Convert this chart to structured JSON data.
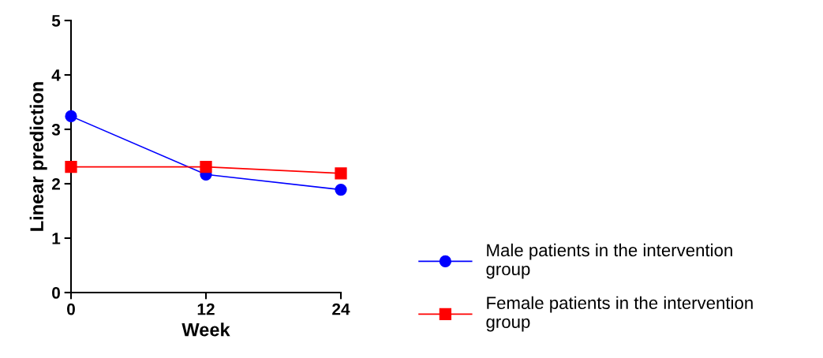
{
  "chart_data": {
    "type": "line",
    "xlabel": "Week",
    "ylabel": "Linear prediction",
    "x": [
      0,
      12,
      24
    ],
    "series": [
      {
        "name": "Male patients in the intervention group",
        "color": "#0000ff",
        "marker": "circle",
        "values": [
          3.24,
          2.17,
          1.89
        ]
      },
      {
        "name": "Female patients in the intervention group",
        "color": "#ff0000",
        "marker": "square",
        "values": [
          2.31,
          2.31,
          2.19
        ]
      }
    ],
    "xlim": [
      0,
      24
    ],
    "xticks": [
      0,
      12,
      24
    ],
    "ylim": [
      0,
      5
    ],
    "yticks": [
      0,
      1,
      2,
      3,
      4,
      5
    ],
    "grid": false,
    "legend": "bottom right",
    "line_style": "solid"
  }
}
